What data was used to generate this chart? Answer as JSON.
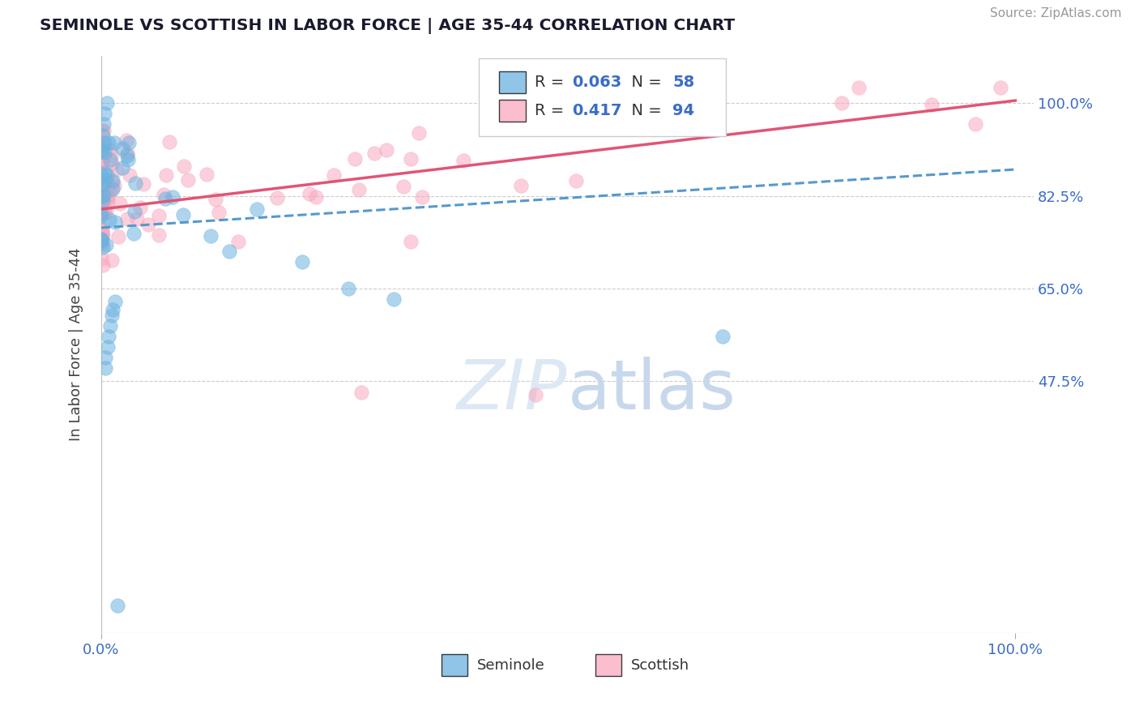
{
  "title": "SEMINOLE VS SCOTTISH IN LABOR FORCE | AGE 35-44 CORRELATION CHART",
  "source": "Source: ZipAtlas.com",
  "ylabel": "In Labor Force | Age 35-44",
  "seminole_R": 0.063,
  "seminole_N": 58,
  "scottish_R": 0.417,
  "scottish_N": 94,
  "seminole_color": "#6cb2e0",
  "scottish_color": "#f9a8bf",
  "seminole_line_color": "#5599cc",
  "scottish_line_color": "#e05575",
  "xlim": [
    0.0,
    1.02
  ],
  "ylim": [
    0.0,
    1.09
  ],
  "y_ticks": [
    0.475,
    0.65,
    0.825,
    1.0
  ],
  "y_tick_labels": [
    "47.5%",
    "65.0%",
    "82.5%",
    "100.0%"
  ],
  "background_color": "#ffffff",
  "seminole_line_x0": 0.0,
  "seminole_line_y0": 0.765,
  "seminole_line_x1": 1.0,
  "seminole_line_y1": 0.875,
  "scottish_line_x0": 0.0,
  "scottish_line_y0": 0.8,
  "scottish_line_x1": 1.0,
  "scottish_line_y1": 1.005
}
